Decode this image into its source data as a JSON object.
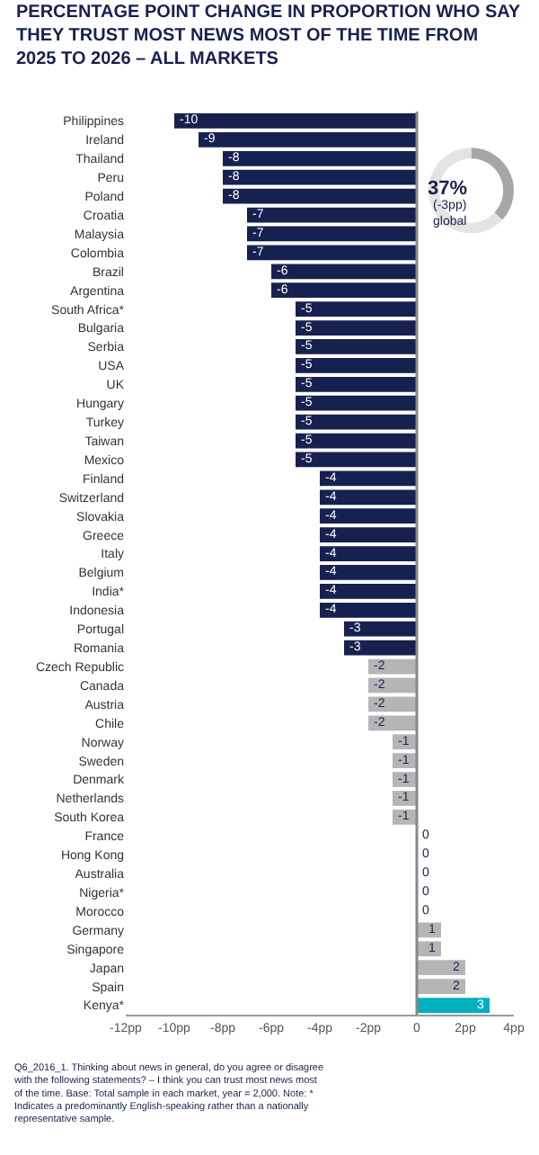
{
  "chart_data": [
    {
      "type": "bar",
      "orientation": "horizontal",
      "title": "PERCENTAGE POINT CHANGE IN PROPORTION WHO SAY THEY TRUST MOST NEWS MOST OF THE TIME FROM 2025 TO 2026 – ALL MARKETS",
      "categories": [
        "Philippines",
        "Ireland",
        "Thailand",
        "Peru",
        "Poland",
        "Croatia",
        "Malaysia",
        "Colombia",
        "Brazil",
        "Argentina",
        "South Africa*",
        "Bulgaria",
        "Serbia",
        "USA",
        "UK",
        "Hungary",
        "Turkey",
        "Taiwan",
        "Mexico",
        "Finland",
        "Switzerland",
        "Slovakia",
        "Greece",
        "Italy",
        "Belgium",
        "India*",
        "Indonesia",
        "Portugal",
        "Romania",
        "Czech Republic",
        "Canada",
        "Austria",
        "Chile",
        "Norway",
        "Sweden",
        "Denmark",
        "Netherlands",
        "South Korea",
        "France",
        "Hong Kong",
        "Australia",
        "Nigeria*",
        "Morocco",
        "Germany",
        "Singapore",
        "Japan",
        "Spain",
        "Kenya*"
      ],
      "values": [
        -10,
        -9,
        -8,
        -8,
        -8,
        -7,
        -7,
        -7,
        -6,
        -6,
        -5,
        -5,
        -5,
        -5,
        -5,
        -5,
        -5,
        -5,
        -5,
        -4,
        -4,
        -4,
        -4,
        -4,
        -4,
        -4,
        -4,
        -3,
        -3,
        -2,
        -2,
        -2,
        -2,
        -1,
        -1,
        -1,
        -1,
        -1,
        0,
        0,
        0,
        0,
        0,
        1,
        1,
        2,
        2,
        3
      ],
      "colors": [
        "#16214f",
        "#16214f",
        "#16214f",
        "#16214f",
        "#16214f",
        "#16214f",
        "#16214f",
        "#16214f",
        "#16214f",
        "#16214f",
        "#16214f",
        "#16214f",
        "#16214f",
        "#16214f",
        "#16214f",
        "#16214f",
        "#16214f",
        "#16214f",
        "#16214f",
        "#16214f",
        "#16214f",
        "#16214f",
        "#16214f",
        "#16214f",
        "#16214f",
        "#16214f",
        "#16214f",
        "#16214f",
        "#16214f",
        "#b5b5b5",
        "#b5b5b5",
        "#b5b5b5",
        "#b5b5b5",
        "#b5b5b5",
        "#b5b5b5",
        "#b5b5b5",
        "#b5b5b5",
        "#b5b5b5",
        "#b5b5b5",
        "#b5b5b5",
        "#b5b5b5",
        "#b5b5b5",
        "#b5b5b5",
        "#b5b5b5",
        "#b5b5b5",
        "#b5b5b5",
        "#b5b5b5",
        "#00b0be"
      ],
      "data_labels": true,
      "xlim": [
        -12,
        4
      ],
      "xticks": [
        {
          "value": -12,
          "label": "-12pp"
        },
        {
          "value": -10,
          "label": "-10pp"
        },
        {
          "value": -8,
          "label": "-8pp"
        },
        {
          "value": -6,
          "label": "-6pp"
        },
        {
          "value": -4,
          "label": "-4pp"
        },
        {
          "value": -2,
          "label": "-2pp"
        },
        0,
        {
          "value": 2,
          "label": "2pp"
        },
        {
          "value": 4,
          "label": "4pp"
        }
      ],
      "ref_lines": [
        {
          "axis": "x",
          "value": 0,
          "color": "#888888"
        }
      ],
      "annotations": [
        "Q6_2016_1. Thinking about news in general, do you agree or disagree with the following statements? – I think you can trust most news most of the time. Base: Total sample in each market, year = 2,000. Note: * Indicates a predominantly English-speaking rather than a nationally representative sample."
      ]
    },
    {
      "type": "donut",
      "categories": [
        null,
        null
      ],
      "values": [
        37,
        63
      ],
      "colors": [
        "#a6a6a6",
        "#e3e3e3"
      ],
      "annotations": [
        "37%",
        "(-3pp)",
        "global"
      ]
    }
  ]
}
